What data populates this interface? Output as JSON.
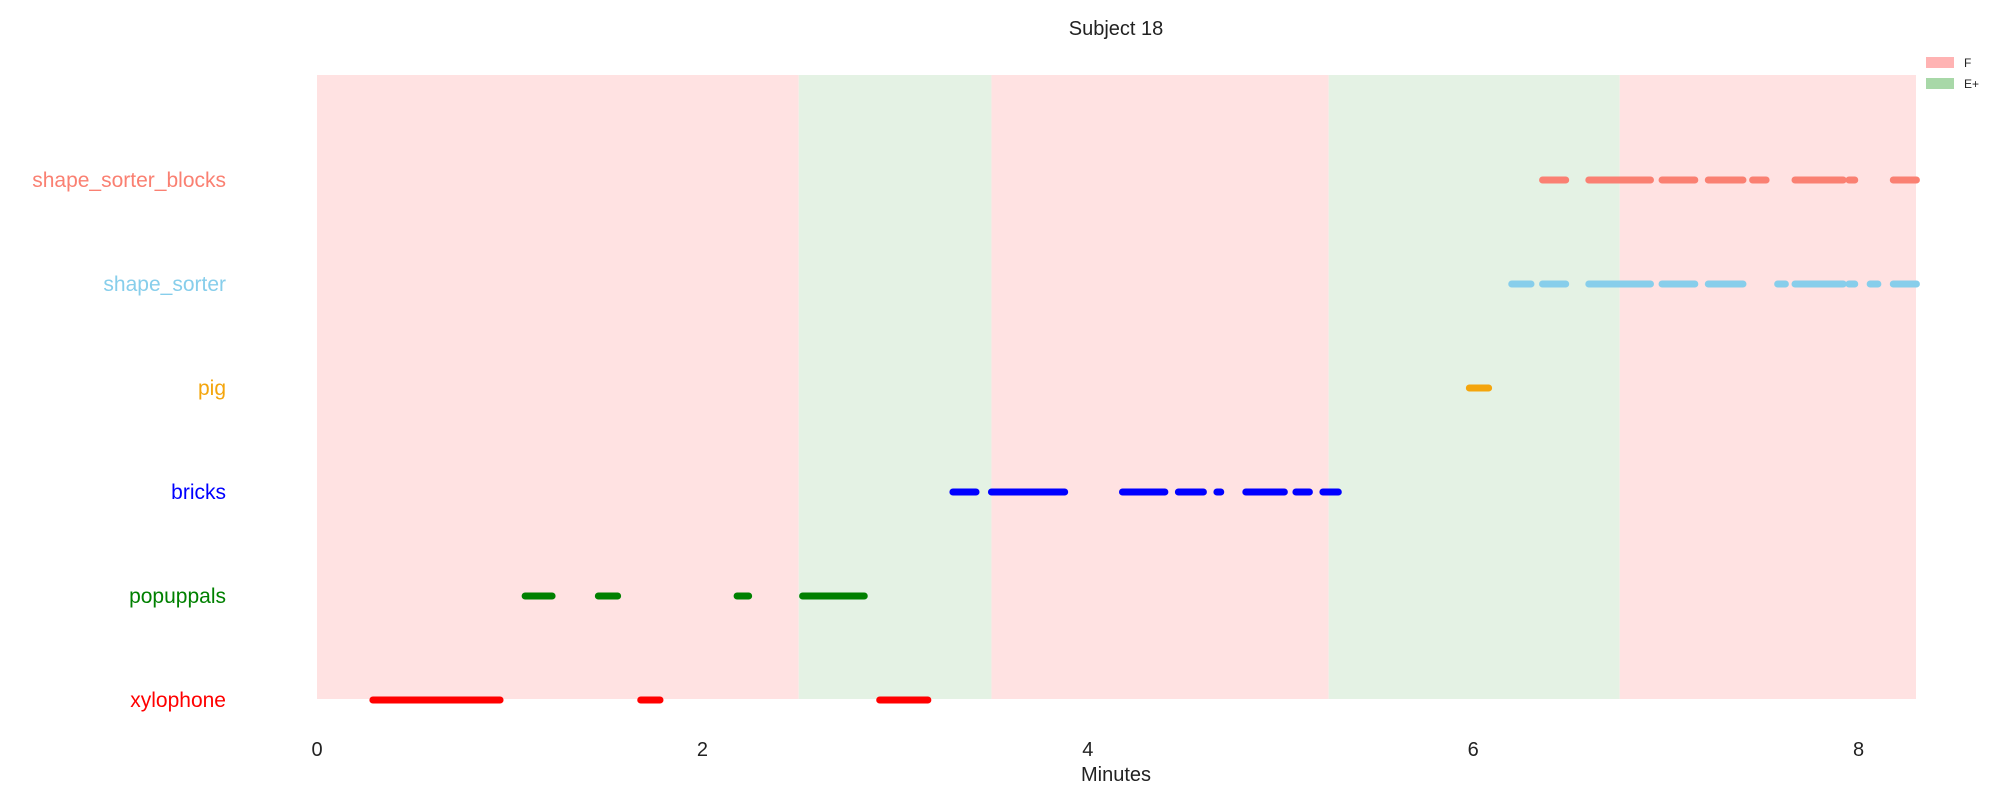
{
  "chart_data": {
    "type": "timeline",
    "title": "Subject 18",
    "xlabel": "Minutes",
    "xlim": [
      0,
      8.3
    ],
    "xticks": [
      "0",
      "2",
      "4",
      "6",
      "8"
    ],
    "grid": false,
    "legend_position": "top-right",
    "background_bands": [
      {
        "label": "F",
        "start": 0,
        "end": 2.5,
        "color": "#ffe2e2"
      },
      {
        "label": "E+",
        "start": 2.5,
        "end": 3.5,
        "color": "#e4f2e4"
      },
      {
        "label": "F",
        "start": 3.5,
        "end": 5.25,
        "color": "#ffe2e2"
      },
      {
        "label": "E+",
        "start": 5.25,
        "end": 6.76,
        "color": "#e4f2e4"
      },
      {
        "label": "F",
        "start": 6.76,
        "end": 8.3,
        "color": "#ffe2e2"
      }
    ],
    "legend": [
      {
        "label": "F",
        "color": "#ffb3b3"
      },
      {
        "label": "E+",
        "color": "#a8d8a8"
      }
    ],
    "categories": [
      "shape_sorter_blocks",
      "shape_sorter",
      "pig",
      "bricks",
      "popuppals",
      "xylophone"
    ],
    "series": [
      {
        "name": "shape_sorter_blocks",
        "color": "#fa8072",
        "segments": [
          [
            6.36,
            6.48
          ],
          [
            6.6,
            6.92
          ],
          [
            6.98,
            7.15
          ],
          [
            7.22,
            7.4
          ],
          [
            7.45,
            7.52
          ],
          [
            7.67,
            7.92
          ],
          [
            7.95,
            7.98
          ],
          [
            8.18,
            8.3
          ]
        ]
      },
      {
        "name": "shape_sorter",
        "color": "#87ceeb",
        "segments": [
          [
            6.2,
            6.3
          ],
          [
            6.36,
            6.48
          ],
          [
            6.6,
            6.92
          ],
          [
            6.98,
            7.15
          ],
          [
            7.22,
            7.4
          ],
          [
            7.58,
            7.62
          ],
          [
            7.67,
            7.92
          ],
          [
            7.95,
            7.98
          ],
          [
            8.06,
            8.1
          ],
          [
            8.18,
            8.3
          ]
        ]
      },
      {
        "name": "pig",
        "color": "#f4a50c",
        "segments": [
          [
            5.98,
            6.08
          ]
        ]
      },
      {
        "name": "bricks",
        "color": "#0000ff",
        "segments": [
          [
            3.3,
            3.42
          ],
          [
            3.5,
            3.88
          ],
          [
            4.18,
            4.4
          ],
          [
            4.47,
            4.6
          ],
          [
            4.67,
            4.69
          ],
          [
            4.82,
            5.02
          ],
          [
            5.08,
            5.15
          ],
          [
            5.22,
            5.3
          ]
        ]
      },
      {
        "name": "popuppals",
        "color": "#008000",
        "segments": [
          [
            1.08,
            1.22
          ],
          [
            1.46,
            1.56
          ],
          [
            2.18,
            2.24
          ],
          [
            2.52,
            2.84
          ]
        ]
      },
      {
        "name": "xylophone",
        "color": "#ff0000",
        "segments": [
          [
            0.29,
            0.95
          ],
          [
            1.68,
            1.78
          ],
          [
            2.92,
            3.17
          ]
        ]
      }
    ]
  }
}
